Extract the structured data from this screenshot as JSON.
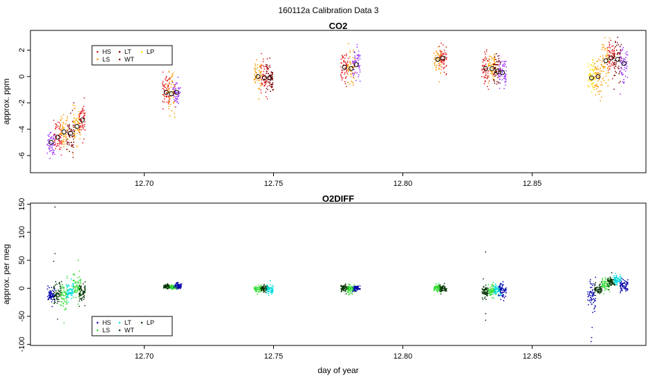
{
  "page_title": "160112a   Calibration Data 3",
  "shared_x_label": "day of year",
  "chart_data": [
    {
      "type": "scatter",
      "title": "CO2",
      "xlabel": "",
      "ylabel": "approx. ppm",
      "xlim": [
        12.656,
        12.894
      ],
      "ylim": [
        -7.3,
        3.5
      ],
      "xticks": [
        12.7,
        12.75,
        12.8,
        12.85
      ],
      "xtick_labels": [
        "12.70",
        "12.75",
        "12.80",
        "12.85"
      ],
      "yticks": [
        -6,
        -4,
        -2,
        0,
        2
      ],
      "ytick_labels": [
        "-6",
        "-4",
        "-2",
        "0",
        "2"
      ],
      "legend": {
        "position": "top-left",
        "entries": [
          {
            "label": "HS",
            "color": "#e41a1c"
          },
          {
            "label": "LS",
            "color": "#ff9900"
          },
          {
            "label": "LT",
            "color": "#7f0000"
          },
          {
            "label": "WT",
            "color": "#7f0000"
          },
          {
            "label": "LP",
            "color": "#ffdd00"
          }
        ]
      },
      "clusters": [
        {
          "x": 12.664,
          "mean": -5.0,
          "sd": 0.5,
          "spread": 0.0015,
          "color": "#9933ff"
        },
        {
          "x": 12.6665,
          "mean": -4.6,
          "sd": 0.6,
          "spread": 0.0015,
          "color": "#e41a1c"
        },
        {
          "x": 12.669,
          "mean": -4.2,
          "sd": 0.6,
          "spread": 0.0015,
          "color": "#ff9900"
        },
        {
          "x": 12.6715,
          "mean": -4.3,
          "sd": 0.8,
          "spread": 0.0015,
          "color": "#7f0000"
        },
        {
          "x": 12.674,
          "mean": -3.8,
          "sd": 0.6,
          "spread": 0.0015,
          "color": "#ffaa00"
        },
        {
          "x": 12.676,
          "mean": -3.3,
          "sd": 0.6,
          "spread": 0.0012,
          "color": "#e41a1c"
        },
        {
          "x": 12.7085,
          "mean": -1.2,
          "sd": 0.7,
          "spread": 0.0015,
          "color": "#e41a1c"
        },
        {
          "x": 12.7105,
          "mean": -1.3,
          "sd": 0.7,
          "spread": 0.0015,
          "color": "#ff9900"
        },
        {
          "x": 12.7125,
          "mean": -1.2,
          "sd": 0.6,
          "spread": 0.0015,
          "color": "#9933ff"
        },
        {
          "x": 12.744,
          "mean": 0.0,
          "sd": 0.6,
          "spread": 0.0015,
          "color": "#ff9900"
        },
        {
          "x": 12.7465,
          "mean": -0.1,
          "sd": 0.6,
          "spread": 0.0015,
          "color": "#e41a1c"
        },
        {
          "x": 12.7485,
          "mean": -0.1,
          "sd": 0.6,
          "spread": 0.0015,
          "color": "#7f0000"
        },
        {
          "x": 12.7775,
          "mean": 0.7,
          "sd": 0.6,
          "spread": 0.0015,
          "color": "#e41a1c"
        },
        {
          "x": 12.78,
          "mean": 0.6,
          "sd": 0.6,
          "spread": 0.0015,
          "color": "#ff9900"
        },
        {
          "x": 12.782,
          "mean": 0.9,
          "sd": 0.6,
          "spread": 0.0015,
          "color": "#9933ff"
        },
        {
          "x": 12.8135,
          "mean": 1.3,
          "sd": 0.6,
          "spread": 0.0015,
          "color": "#ff9900"
        },
        {
          "x": 12.8155,
          "mean": 1.4,
          "sd": 0.6,
          "spread": 0.0015,
          "color": "#e41a1c"
        },
        {
          "x": 12.832,
          "mean": 0.6,
          "sd": 0.6,
          "spread": 0.0015,
          "color": "#e41a1c"
        },
        {
          "x": 12.8345,
          "mean": 0.6,
          "sd": 0.6,
          "spread": 0.0015,
          "color": "#ff9900"
        },
        {
          "x": 12.8365,
          "mean": 0.4,
          "sd": 0.6,
          "spread": 0.0015,
          "color": "#7f0000"
        },
        {
          "x": 12.8385,
          "mean": 0.3,
          "sd": 0.6,
          "spread": 0.0015,
          "color": "#9933ff"
        },
        {
          "x": 12.873,
          "mean": -0.1,
          "sd": 0.6,
          "spread": 0.0015,
          "color": "#ffdd00"
        },
        {
          "x": 12.8755,
          "mean": 0.0,
          "sd": 0.7,
          "spread": 0.0015,
          "color": "#ff9900"
        },
        {
          "x": 12.8785,
          "mean": 1.2,
          "sd": 0.8,
          "spread": 0.0015,
          "color": "#ff9900"
        },
        {
          "x": 12.8805,
          "mean": 1.4,
          "sd": 0.6,
          "spread": 0.0015,
          "color": "#e41a1c"
        },
        {
          "x": 12.883,
          "mean": 1.3,
          "sd": 0.8,
          "spread": 0.0015,
          "color": "#7f0000"
        },
        {
          "x": 12.8855,
          "mean": 1.0,
          "sd": 0.7,
          "spread": 0.0015,
          "color": "#9933ff"
        }
      ]
    },
    {
      "type": "scatter",
      "title": "O2DIFF",
      "xlabel": "day of year",
      "ylabel": "approx. per meg",
      "xlim": [
        12.656,
        12.894
      ],
      "ylim": [
        -102,
        152
      ],
      "xticks": [
        12.7,
        12.75,
        12.8,
        12.85
      ],
      "xtick_labels": [
        "12.70",
        "12.75",
        "12.80",
        "12.85"
      ],
      "yticks": [
        -100,
        -50,
        0,
        50,
        100,
        150
      ],
      "ytick_labels": [
        "-100",
        "-50",
        "0",
        "50",
        "100",
        "150"
      ],
      "legend": {
        "position": "bottom-left",
        "entries": [
          {
            "label": "HS",
            "color": "#0000aa"
          },
          {
            "label": "LS",
            "color": "#33dd33"
          },
          {
            "label": "LT",
            "color": "#00dddd"
          },
          {
            "label": "WT",
            "color": "#003300"
          },
          {
            "label": "LP",
            "color": "#003300"
          }
        ]
      },
      "clusters": [
        {
          "x": 12.664,
          "mean": -12,
          "sd": 7,
          "spread": 0.0015,
          "color": "#0000aa"
        },
        {
          "x": 12.6665,
          "mean": -12,
          "sd": 12,
          "spread": 0.0015,
          "color": "#003300"
        },
        {
          "x": 12.669,
          "mean": -10,
          "sd": 12,
          "spread": 0.0015,
          "color": "#33dd33"
        },
        {
          "x": 12.6715,
          "mean": -5,
          "sd": 8,
          "spread": 0.0015,
          "color": "#00dddd"
        },
        {
          "x": 12.674,
          "mean": 0,
          "sd": 14,
          "spread": 0.0015,
          "color": "#33dd33"
        },
        {
          "x": 12.676,
          "mean": -8,
          "sd": 10,
          "spread": 0.0012,
          "color": "#003300"
        },
        {
          "x": 12.709,
          "mean": 3,
          "sd": 2,
          "spread": 0.0015,
          "color": "#003300"
        },
        {
          "x": 12.711,
          "mean": 2,
          "sd": 2,
          "spread": 0.0015,
          "color": "#33dd33"
        },
        {
          "x": 12.713,
          "mean": 4,
          "sd": 3,
          "spread": 0.0015,
          "color": "#0000aa"
        },
        {
          "x": 12.744,
          "mean": -2,
          "sd": 3,
          "spread": 0.0015,
          "color": "#33dd33"
        },
        {
          "x": 12.7465,
          "mean": -1,
          "sd": 3,
          "spread": 0.0015,
          "color": "#003300"
        },
        {
          "x": 12.7485,
          "mean": -2,
          "sd": 5,
          "spread": 0.0015,
          "color": "#00dddd"
        },
        {
          "x": 12.7775,
          "mean": 0,
          "sd": 3,
          "spread": 0.0015,
          "color": "#003300"
        },
        {
          "x": 12.78,
          "mean": -1,
          "sd": 4,
          "spread": 0.0015,
          "color": "#33dd33"
        },
        {
          "x": 12.782,
          "mean": 0,
          "sd": 3,
          "spread": 0.0015,
          "color": "#0000aa"
        },
        {
          "x": 12.8135,
          "mean": 1,
          "sd": 3,
          "spread": 0.0015,
          "color": "#33dd33"
        },
        {
          "x": 12.8155,
          "mean": 0,
          "sd": 3,
          "spread": 0.0015,
          "color": "#003300"
        },
        {
          "x": 12.832,
          "mean": -5,
          "sd": 8,
          "spread": 0.0015,
          "color": "#003300"
        },
        {
          "x": 12.8345,
          "mean": -4,
          "sd": 6,
          "spread": 0.0015,
          "color": "#33dd33"
        },
        {
          "x": 12.8365,
          "mean": -3,
          "sd": 7,
          "spread": 0.0015,
          "color": "#00dddd"
        },
        {
          "x": 12.8385,
          "mean": -4,
          "sd": 6,
          "spread": 0.0015,
          "color": "#0000aa"
        },
        {
          "x": 12.873,
          "mean": -10,
          "sd": 14,
          "spread": 0.0015,
          "color": "#0000aa"
        },
        {
          "x": 12.8755,
          "mean": -2,
          "sd": 5,
          "spread": 0.0015,
          "color": "#003300"
        },
        {
          "x": 12.8785,
          "mean": 7,
          "sd": 6,
          "spread": 0.0015,
          "color": "#33dd33"
        },
        {
          "x": 12.8805,
          "mean": 10,
          "sd": 5,
          "spread": 0.0015,
          "color": "#003300"
        },
        {
          "x": 12.883,
          "mean": 15,
          "sd": 5,
          "spread": 0.0015,
          "color": "#00dddd"
        },
        {
          "x": 12.8855,
          "mean": 5,
          "sd": 6,
          "spread": 0.0015,
          "color": "#0000aa"
        }
      ],
      "outliers": [
        {
          "x": 12.6655,
          "y": 145,
          "color": "#003300"
        },
        {
          "x": 12.6655,
          "y": 62,
          "color": "#003300"
        },
        {
          "x": 12.665,
          "y": 48,
          "color": "#003300"
        },
        {
          "x": 12.6665,
          "y": -55,
          "color": "#003300"
        },
        {
          "x": 12.669,
          "y": -62,
          "color": "#33dd33"
        },
        {
          "x": 12.6745,
          "y": 50,
          "color": "#33dd33"
        },
        {
          "x": 12.832,
          "y": 65,
          "color": "#003300"
        },
        {
          "x": 12.832,
          "y": -45,
          "color": "#003300"
        },
        {
          "x": 12.832,
          "y": -57,
          "color": "#003300"
        },
        {
          "x": 12.8728,
          "y": -95,
          "color": "#0000aa"
        },
        {
          "x": 12.873,
          "y": -88,
          "color": "#0000aa"
        },
        {
          "x": 12.8732,
          "y": -70,
          "color": "#0000aa"
        }
      ]
    }
  ]
}
